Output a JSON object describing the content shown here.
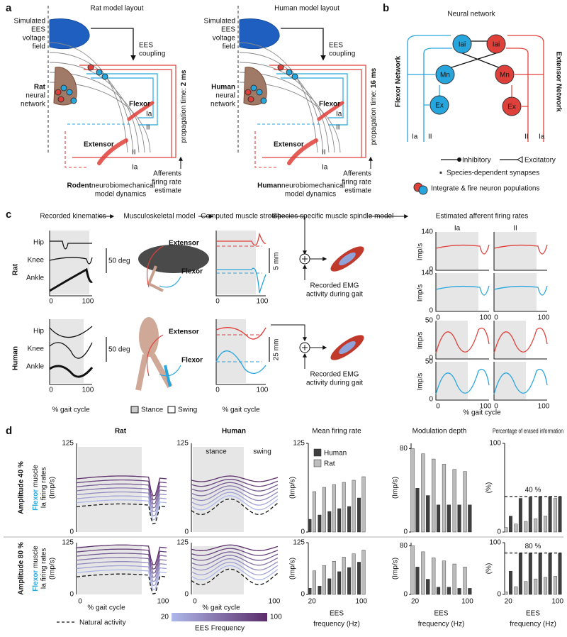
{
  "panel_a": {
    "label": "a",
    "rat": {
      "title": "Rat model layout",
      "field": [
        "Simulated",
        "EES",
        "voltage",
        "field"
      ],
      "coupling": [
        "EES",
        "coupling"
      ],
      "network": [
        "Rat",
        "neural",
        "network"
      ],
      "flexor": "Flexor",
      "flexor_ia": "Ia",
      "flexor_ii": "II",
      "extensor": "Extensor",
      "extensor_ii": "II",
      "extensor_ia": "Ia",
      "propagation": "propagation time: ",
      "propagation_value": "2 ms",
      "afferents": [
        "Afferents",
        "firing rate",
        "estimate"
      ],
      "dynamics": [
        "Rodent",
        " neurobiomechanical",
        "model dynamics"
      ]
    },
    "human": {
      "title": "Human model layout",
      "field": [
        "Simulated",
        "EES",
        "voltage",
        "field"
      ],
      "coupling": [
        "EES",
        "coupling"
      ],
      "network": [
        "Human",
        "neural",
        "network"
      ],
      "flexor": "Flexor",
      "flexor_ia": "Ia",
      "flexor_ii": "II",
      "extensor": "Extensor",
      "extensor_ii": "II",
      "extensor_ia": "Ia",
      "propagation": "propagation time: ",
      "propagation_value": "16 ms",
      "afferents": [
        "Afferents",
        "firing rate",
        "estimate"
      ],
      "dynamics": [
        "Human",
        " neurobiomechanical",
        "model dynamics"
      ]
    }
  },
  "panel_b": {
    "label": "b",
    "title": "Neural network",
    "nodes": [
      "Iai",
      "Iai",
      "Mn",
      "Mn",
      "Ex",
      "Ex"
    ],
    "flexor_network": "Flexor Network",
    "extensor_network": "Extensor Network",
    "inputs": [
      "Ia",
      "II",
      "II",
      "Ia"
    ],
    "legend": {
      "inhibitory": "Inhibitory",
      "excitatory": "Excitatory",
      "star": "*",
      "species": "Species-dependent synapses",
      "integrate": "Integrate & fire neuron populations"
    }
  },
  "panel_c": {
    "label": "c",
    "headers": [
      "Recorded kinematics",
      "Musculoskeletal model",
      "Computed muscle stretch",
      "Species specific muscle spindle model",
      "Estimated afferent firing rates"
    ],
    "rows": [
      {
        "label": "Rat",
        "joints": [
          "Hip",
          "Knee",
          "Ankle"
        ],
        "angle_scale": "50 deg",
        "extensor": "Extensor",
        "flexor": "Flexor",
        "stretch_scale": "5 mm",
        "emg": [
          "Recorded EMG",
          "activity during gait"
        ],
        "xticks": [
          "0",
          "100"
        ],
        "rate_unit": "Imp/s",
        "rate_ticks": [
          "140",
          "0"
        ],
        "afferents": [
          "Ia",
          "II"
        ]
      },
      {
        "label": "Human",
        "joints": [
          "Hip",
          "Knee",
          "Ankle"
        ],
        "angle_scale": "50 deg",
        "extensor": "Extensor",
        "flexor": "Flexor",
        "stretch_scale": "25 mm",
        "emg": [
          "Recorded EMG",
          "activity during gait"
        ],
        "xticks": [
          "0",
          "100"
        ],
        "rate_unit": "Imp/s",
        "rate_ticks": [
          "50",
          "0"
        ],
        "afferents": [
          "Ia",
          "II"
        ]
      }
    ],
    "xlabel": "% gait cycle",
    "stance": "Stance",
    "swing": "Swing"
  },
  "panel_d": {
    "label": "d",
    "columns": [
      "Rat",
      "Human",
      "Mean firing rate",
      "Modulation depth",
      "Percentage of erased information"
    ],
    "ylabel": {
      "flexor": "Flexor",
      "muscle": " muscle",
      "line2": "Ia firing rates",
      "unit": "(Imp/s)"
    },
    "line_ticks": [
      "125",
      "0"
    ],
    "line_xticks": [
      "0",
      "100"
    ],
    "stance": "stance",
    "swing": "swing",
    "xlabel": "% gait cycle",
    "natural": "Natural activity",
    "colorbar": {
      "min": "20",
      "max": "100",
      "label": "EES Frequency"
    },
    "legend": [
      {
        "name": "Human",
        "color": "#3f3f3f"
      },
      {
        "name": "Rat",
        "color": "#bdbdbd"
      }
    ],
    "bar_xlabel": [
      "EES",
      "frequency (Hz)"
    ],
    "x": [
      20,
      36,
      52,
      68,
      84,
      100
    ],
    "xlim": [
      14,
      106
    ],
    "xticks": [
      20,
      100
    ],
    "rows": [
      {
        "label": "Amplitude 40 %",
        "mean": {
          "ylabel": "(Imp/s)",
          "ylim": [
            0,
            125
          ],
          "yticks": [
            0,
            125
          ],
          "human": [
            18,
            24,
            29,
            33,
            36,
            48
          ],
          "rat": [
            57,
            63,
            67,
            70,
            73,
            78
          ]
        },
        "modulation": {
          "ylabel": "(Imp/s)",
          "ylim": [
            0,
            85
          ],
          "yticks": [
            0,
            80
          ],
          "human": [
            42,
            35,
            26,
            26,
            26,
            26
          ],
          "rat": [
            80,
            75,
            70,
            65,
            60,
            58
          ]
        },
        "erased": {
          "ylabel": "(%)",
          "ylim": [
            0,
            100
          ],
          "yticks": [
            0,
            100
          ],
          "human": [
            18,
            38,
            39,
            40,
            40,
            40
          ],
          "rat": [
            5,
            9,
            12,
            15,
            18,
            38
          ],
          "threshold": {
            "value": 40,
            "label": "40 %"
          }
        }
      },
      {
        "label": "Amplitude 80 %",
        "mean": {
          "ylabel": "(Imp/s)",
          "ylim": [
            0,
            125
          ],
          "yticks": [
            0,
            125
          ],
          "human": [
            15,
            20,
            38,
            55,
            65,
            78
          ],
          "rat": [
            57,
            70,
            80,
            90,
            98,
            107
          ]
        },
        "modulation": {
          "ylabel": "(Imp/s)",
          "ylim": [
            0,
            85
          ],
          "yticks": [
            0,
            80
          ],
          "human": [
            45,
            25,
            12,
            12,
            10,
            10
          ],
          "rat": [
            80,
            70,
            60,
            55,
            50,
            45
          ]
        },
        "erased": {
          "ylabel": "(%)",
          "ylim": [
            0,
            100
          ],
          "yticks": [
            0,
            100
          ],
          "human": [
            45,
            80,
            80,
            80,
            80,
            80
          ],
          "rat": [
            5,
            15,
            25,
            30,
            33,
            35
          ],
          "threshold": {
            "value": 80,
            "label": "80 %"
          }
        }
      }
    ]
  }
}
